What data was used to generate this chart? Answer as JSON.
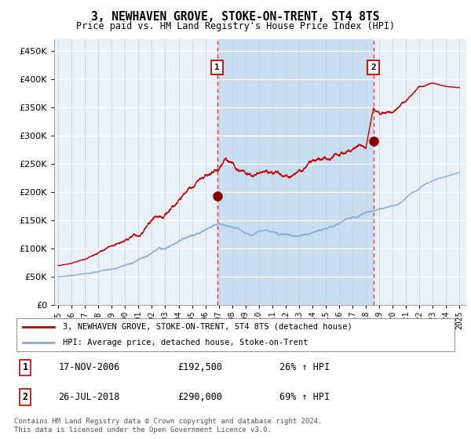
{
  "title": "3, NEWHAVEN GROVE, STOKE-ON-TRENT, ST4 8TS",
  "subtitle": "Price paid vs. HM Land Registry's House Price Index (HPI)",
  "ylim": [
    0,
    470000
  ],
  "xlim_start": 1994.7,
  "xlim_end": 2025.5,
  "hpi_color": "#88aadd",
  "price_color": "#cc0000",
  "background_color": "#e8f0f8",
  "shade_color": "#c8ddf0",
  "transaction1_x": 2006.88,
  "transaction1_y": 192500,
  "transaction2_x": 2018.56,
  "transaction2_y": 290000,
  "transaction1_label": "1",
  "transaction2_label": "2",
  "legend_line1": "3, NEWHAVEN GROVE, STOKE-ON-TRENT, ST4 8TS (detached house)",
  "legend_line2": "HPI: Average price, detached house, Stoke-on-Trent",
  "ann1_date": "17-NOV-2006",
  "ann1_price": "£192,500",
  "ann1_hpi": "26% ↑ HPI",
  "ann2_date": "26-JUL-2018",
  "ann2_price": "£290,000",
  "ann2_hpi": "69% ↑ HPI",
  "footer": "Contains HM Land Registry data © Crown copyright and database right 2024.\nThis data is licensed under the Open Government Licence v3.0."
}
